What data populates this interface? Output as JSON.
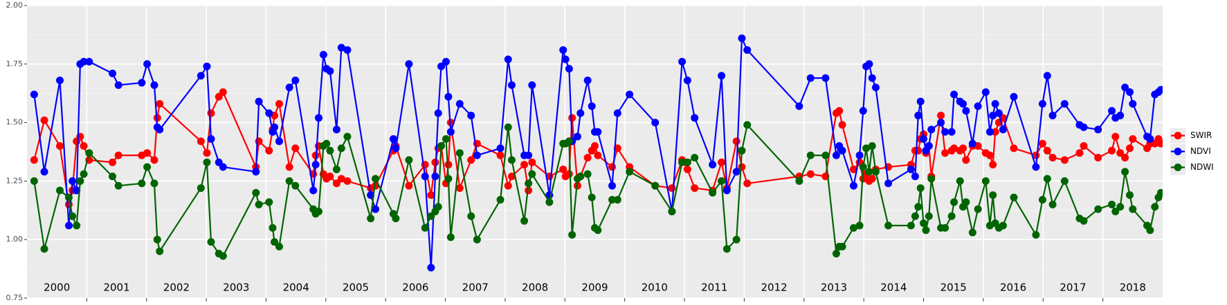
{
  "chart_data": {
    "type": "line",
    "x": [
      2000.12,
      2000.29,
      2000.55,
      2000.7,
      2000.76,
      2000.83,
      2000.89,
      2000.95,
      2001.04,
      2001.43,
      2001.53,
      2001.92,
      2002.01,
      2002.13,
      2002.18,
      2002.22,
      2002.91,
      2003.01,
      2003.08,
      2003.21,
      2003.28,
      2003.83,
      2003.88,
      2004.05,
      2004.11,
      2004.14,
      2004.22,
      2004.39,
      2004.49,
      2004.79,
      2004.83,
      2004.88,
      2004.96,
      2005.01,
      2005.07,
      2005.18,
      2005.26,
      2005.36,
      2005.75,
      2005.83,
      2006.13,
      2006.17,
      2006.39,
      2006.66,
      2006.76,
      2006.83,
      2006.88,
      2006.93,
      2007.01,
      2007.05,
      2007.09,
      2007.24,
      2007.43,
      2007.53,
      2007.92,
      2008.05,
      2008.11,
      2008.32,
      2008.39,
      2008.45,
      2008.74,
      2008.97,
      2009.01,
      2009.07,
      2009.12,
      2009.21,
      2009.26,
      2009.38,
      2009.45,
      2009.5,
      2009.55,
      2009.79,
      2009.88,
      2010.08,
      2010.51,
      2010.79,
      2010.96,
      2011.05,
      2011.17,
      2011.47,
      2011.62,
      2011.71,
      2011.87,
      2011.96,
      2012.05,
      2012.92,
      2013.11,
      2013.36,
      2013.54,
      2013.59,
      2013.64,
      2013.83,
      2013.93,
      2013.99,
      2014.04,
      2014.09,
      2014.14,
      2014.2,
      2014.41,
      2014.79,
      2014.86,
      2014.91,
      2014.95,
      2015.0,
      2015.04,
      2015.09,
      2015.13,
      2015.29,
      2015.36,
      2015.47,
      2015.51,
      2015.61,
      2015.66,
      2015.71,
      2015.82,
      2015.91,
      2016.04,
      2016.11,
      2016.16,
      2016.2,
      2016.26,
      2016.33,
      2016.51,
      2016.88,
      2016.99,
      2017.07,
      2017.16,
      2017.36,
      2017.61,
      2017.68,
      2017.92,
      2018.15,
      2018.21,
      2018.29,
      2018.37,
      2018.45,
      2018.5,
      2018.74,
      2018.79,
      2018.87,
      2018.93,
      2018.97
    ],
    "series": [
      {
        "name": "SWIR",
        "color": "#ff0000",
        "values": [
          1.34,
          1.51,
          1.4,
          1.15,
          1.21,
          1.42,
          1.44,
          1.4,
          1.34,
          1.33,
          1.36,
          1.36,
          1.37,
          1.34,
          1.52,
          1.58,
          1.42,
          1.37,
          1.54,
          1.61,
          1.63,
          1.31,
          1.42,
          1.38,
          1.47,
          1.53,
          1.58,
          1.31,
          1.39,
          1.28,
          1.36,
          1.4,
          1.28,
          1.26,
          1.27,
          1.24,
          1.26,
          1.25,
          1.22,
          1.23,
          1.38,
          1.4,
          1.23,
          1.32,
          1.19,
          1.33,
          1.39,
          1.4,
          1.24,
          1.32,
          1.5,
          1.22,
          1.34,
          1.41,
          1.36,
          1.23,
          1.27,
          1.32,
          1.21,
          1.33,
          1.27,
          1.3,
          1.27,
          1.28,
          1.52,
          1.23,
          1.27,
          1.35,
          1.38,
          1.4,
          1.36,
          1.31,
          1.39,
          1.31,
          1.23,
          1.22,
          1.34,
          1.3,
          1.22,
          1.21,
          1.33,
          1.22,
          1.42,
          1.31,
          1.24,
          1.27,
          1.28,
          1.27,
          1.54,
          1.55,
          1.49,
          1.3,
          1.33,
          1.26,
          1.28,
          1.25,
          1.26,
          1.3,
          1.31,
          1.32,
          1.38,
          1.38,
          1.43,
          1.45,
          1.37,
          1.4,
          1.27,
          1.53,
          1.37,
          1.38,
          1.39,
          1.38,
          1.39,
          1.34,
          1.4,
          1.4,
          1.37,
          1.36,
          1.32,
          1.46,
          1.5,
          1.52,
          1.39,
          1.36,
          1.41,
          1.38,
          1.35,
          1.34,
          1.37,
          1.4,
          1.35,
          1.38,
          1.44,
          1.37,
          1.35,
          1.39,
          1.43,
          1.39,
          1.41,
          1.41,
          1.43,
          1.41
        ]
      },
      {
        "name": "NDVI",
        "color": "#0000ff",
        "values": [
          1.62,
          1.29,
          1.68,
          1.06,
          1.25,
          1.21,
          1.75,
          1.76,
          1.76,
          1.71,
          1.66,
          1.67,
          1.75,
          1.66,
          1.48,
          1.47,
          1.7,
          1.74,
          1.43,
          1.33,
          1.31,
          1.29,
          1.59,
          1.54,
          1.46,
          1.48,
          1.42,
          1.65,
          1.68,
          1.21,
          1.32,
          1.52,
          1.79,
          1.73,
          1.72,
          1.47,
          1.82,
          1.81,
          1.19,
          1.13,
          1.43,
          1.39,
          1.75,
          1.27,
          0.88,
          1.27,
          1.54,
          1.74,
          1.76,
          1.61,
          1.46,
          1.58,
          1.53,
          1.36,
          1.39,
          1.77,
          1.66,
          1.36,
          1.36,
          1.66,
          1.19,
          1.81,
          1.77,
          1.73,
          1.42,
          1.44,
          1.54,
          1.68,
          1.57,
          1.46,
          1.46,
          1.23,
          1.54,
          1.62,
          1.5,
          1.12,
          1.76,
          1.68,
          1.52,
          1.32,
          1.7,
          1.21,
          1.29,
          1.86,
          1.81,
          1.57,
          1.69,
          1.69,
          1.36,
          1.4,
          1.38,
          1.23,
          1.36,
          1.55,
          1.74,
          1.75,
          1.69,
          1.65,
          1.24,
          1.3,
          1.27,
          1.53,
          1.59,
          1.43,
          1.38,
          1.4,
          1.47,
          1.5,
          1.46,
          1.46,
          1.62,
          1.59,
          1.58,
          1.55,
          1.41,
          1.57,
          1.63,
          1.46,
          1.53,
          1.58,
          1.54,
          1.47,
          1.61,
          1.31,
          1.58,
          1.7,
          1.53,
          1.58,
          1.49,
          1.48,
          1.47,
          1.55,
          1.52,
          1.53,
          1.65,
          1.63,
          1.58,
          1.44,
          1.43,
          1.62,
          1.63,
          1.64
        ]
      },
      {
        "name": "NDWI",
        "color": "#006400",
        "values": [
          1.25,
          0.96,
          1.21,
          1.18,
          1.1,
          1.06,
          1.25,
          1.28,
          1.37,
          1.27,
          1.23,
          1.24,
          1.31,
          1.24,
          1.0,
          0.95,
          1.22,
          1.33,
          0.99,
          0.94,
          0.93,
          1.2,
          1.15,
          1.16,
          1.05,
          0.99,
          0.97,
          1.25,
          1.23,
          1.13,
          1.11,
          1.12,
          1.4,
          1.41,
          1.38,
          1.3,
          1.39,
          1.44,
          1.09,
          1.26,
          1.11,
          1.09,
          1.34,
          1.05,
          1.1,
          1.12,
          1.14,
          1.4,
          1.43,
          1.26,
          1.01,
          1.37,
          1.1,
          1.0,
          1.17,
          1.48,
          1.34,
          1.08,
          1.24,
          1.28,
          1.16,
          1.41,
          1.41,
          1.42,
          1.02,
          1.26,
          1.27,
          1.28,
          1.18,
          1.05,
          1.04,
          1.17,
          1.17,
          1.29,
          1.23,
          1.12,
          1.33,
          1.33,
          1.35,
          1.2,
          1.25,
          0.96,
          1.0,
          1.38,
          1.49,
          1.25,
          1.36,
          1.36,
          0.94,
          0.97,
          0.97,
          1.05,
          1.06,
          1.31,
          1.39,
          1.29,
          1.4,
          1.29,
          1.06,
          1.06,
          1.1,
          1.14,
          1.22,
          1.07,
          1.04,
          1.1,
          1.26,
          1.05,
          1.05,
          1.1,
          1.16,
          1.25,
          1.14,
          1.16,
          1.03,
          1.13,
          1.25,
          1.06,
          1.19,
          1.07,
          1.05,
          1.06,
          1.18,
          1.02,
          1.17,
          1.26,
          1.15,
          1.25,
          1.09,
          1.08,
          1.13,
          1.15,
          1.12,
          1.14,
          1.29,
          1.19,
          1.13,
          1.06,
          1.04,
          1.14,
          1.18,
          1.2
        ]
      }
    ],
    "xlim": [
      2000,
      2019
    ],
    "xticks": [
      {
        "value": 2000.5,
        "label": "2000"
      },
      {
        "value": 2001.5,
        "label": "2001"
      },
      {
        "value": 2002.5,
        "label": "2002"
      },
      {
        "value": 2003.5,
        "label": "2003"
      },
      {
        "value": 2004.5,
        "label": "2004"
      },
      {
        "value": 2005.5,
        "label": "2005"
      },
      {
        "value": 2006.5,
        "label": "2006"
      },
      {
        "value": 2007.5,
        "label": "2007"
      },
      {
        "value": 2008.5,
        "label": "2008"
      },
      {
        "value": 2009.5,
        "label": "2009"
      },
      {
        "value": 2010.5,
        "label": "2010"
      },
      {
        "value": 2011.5,
        "label": "2011"
      },
      {
        "value": 2012.5,
        "label": "2012"
      },
      {
        "value": 2013.5,
        "label": "2013"
      },
      {
        "value": 2014.5,
        "label": "2014"
      },
      {
        "value": 2015.5,
        "label": "2015"
      },
      {
        "value": 2016.5,
        "label": "2016"
      },
      {
        "value": 2017.5,
        "label": "2017"
      },
      {
        "value": 2018.5,
        "label": "2018"
      }
    ],
    "year_breaks": [
      2001,
      2002,
      2003,
      2004,
      2005,
      2006,
      2007,
      2008,
      2009,
      2010,
      2011,
      2012,
      2013,
      2014,
      2015,
      2016,
      2017,
      2018
    ],
    "ylim": [
      0.75,
      2.0
    ],
    "yticks": [
      0.75,
      {
        "value": 1.0,
        "label": "1.00"
      },
      1.25,
      {
        "value": 1.5,
        "label": "1.50"
      },
      1.75,
      {
        "value": 2.0,
        "label": "2.00"
      }
    ],
    "grid": true,
    "legend": "right"
  }
}
